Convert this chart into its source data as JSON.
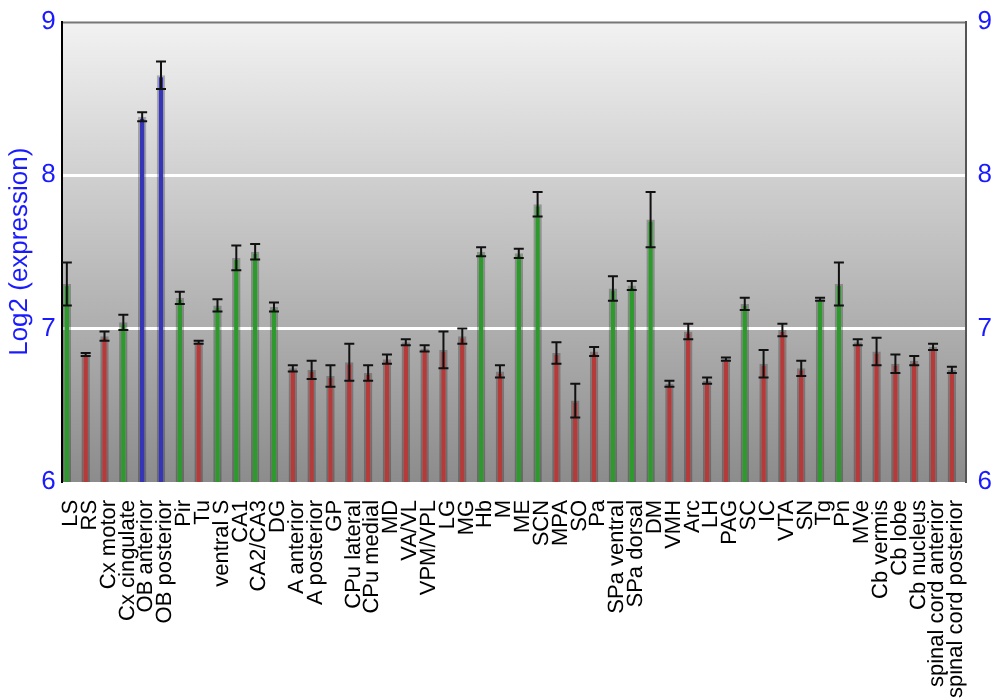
{
  "chart_data": {
    "type": "bar",
    "ylabel": "Log2 (expression)",
    "categories": [
      "LS",
      "RS",
      "Cx motor",
      "Cx cingulate",
      "OB anterior",
      "OB posterior",
      "Pir",
      "Tu",
      "ventral S",
      "CA1",
      "CA2/CA3",
      "DG",
      "A anterior",
      "A posterior",
      "GP",
      "CPu lateral",
      "CPu medial",
      "MD",
      "VA/VL",
      "VPM/VPL",
      "LG",
      "MG",
      "Hb",
      "M",
      "ME",
      "SCN",
      "MPA",
      "SO",
      "Pa",
      "SPa ventral",
      "SPa dorsal",
      "DM",
      "VMH",
      "Arc",
      "LH",
      "PAG",
      "SC",
      "IC",
      "VTA",
      "SN",
      "Tg",
      "Pn",
      "MVe",
      "Cb vermis",
      "Cb lobe",
      "Cb nucleus",
      "spinal cord anterior",
      "spinal cord posterior"
    ],
    "values": [
      7.29,
      6.83,
      6.95,
      7.04,
      8.38,
      8.65,
      7.2,
      6.91,
      7.15,
      7.46,
      7.5,
      7.14,
      6.74,
      6.73,
      6.69,
      6.78,
      6.71,
      6.8,
      6.91,
      6.87,
      6.86,
      6.95,
      7.5,
      6.72,
      7.49,
      7.81,
      6.84,
      6.53,
      6.85,
      7.26,
      7.28,
      7.71,
      6.64,
      6.98,
      6.66,
      6.8,
      7.16,
      6.77,
      6.99,
      6.74,
      7.19,
      7.29,
      6.91,
      6.85,
      6.77,
      6.79,
      6.88,
      6.73
    ],
    "errors": [
      0.14,
      0.01,
      0.03,
      0.05,
      0.03,
      0.09,
      0.04,
      0.01,
      0.04,
      0.08,
      0.05,
      0.03,
      0.02,
      0.06,
      0.07,
      0.12,
      0.05,
      0.03,
      0.02,
      0.02,
      0.12,
      0.05,
      0.03,
      0.04,
      0.03,
      0.08,
      0.07,
      0.11,
      0.03,
      0.08,
      0.03,
      0.18,
      0.02,
      0.05,
      0.02,
      0.01,
      0.04,
      0.09,
      0.04,
      0.05,
      0.01,
      0.14,
      0.02,
      0.09,
      0.06,
      0.03,
      0.02,
      0.02
    ],
    "colors": [
      "#2e9a2e",
      "#b53a3a",
      "#b53a3a",
      "#2e9a2e",
      "#3535b5",
      "#3535b5",
      "#2e9a2e",
      "#b53a3a",
      "#2e9a2e",
      "#2e9a2e",
      "#2e9a2e",
      "#2e9a2e",
      "#b53a3a",
      "#b53a3a",
      "#b53a3a",
      "#b53a3a",
      "#b53a3a",
      "#b53a3a",
      "#b53a3a",
      "#b53a3a",
      "#b53a3a",
      "#b53a3a",
      "#2e9a2e",
      "#b53a3a",
      "#2e9a2e",
      "#2e9a2e",
      "#b53a3a",
      "#b53a3a",
      "#b53a3a",
      "#2e9a2e",
      "#2e9a2e",
      "#2e9a2e",
      "#b53a3a",
      "#b53a3a",
      "#b53a3a",
      "#b53a3a",
      "#2e9a2e",
      "#b53a3a",
      "#b53a3a",
      "#b53a3a",
      "#2e9a2e",
      "#2e9a2e",
      "#b53a3a",
      "#b53a3a",
      "#b53a3a",
      "#b53a3a",
      "#b53a3a",
      "#b53a3a"
    ],
    "ylim": [
      6,
      9
    ],
    "yticks": [
      6,
      7,
      8,
      9
    ],
    "y2lim": [
      6,
      9
    ],
    "y2ticks": [
      6,
      7,
      8,
      9
    ],
    "grid": "y",
    "legend": false
  }
}
